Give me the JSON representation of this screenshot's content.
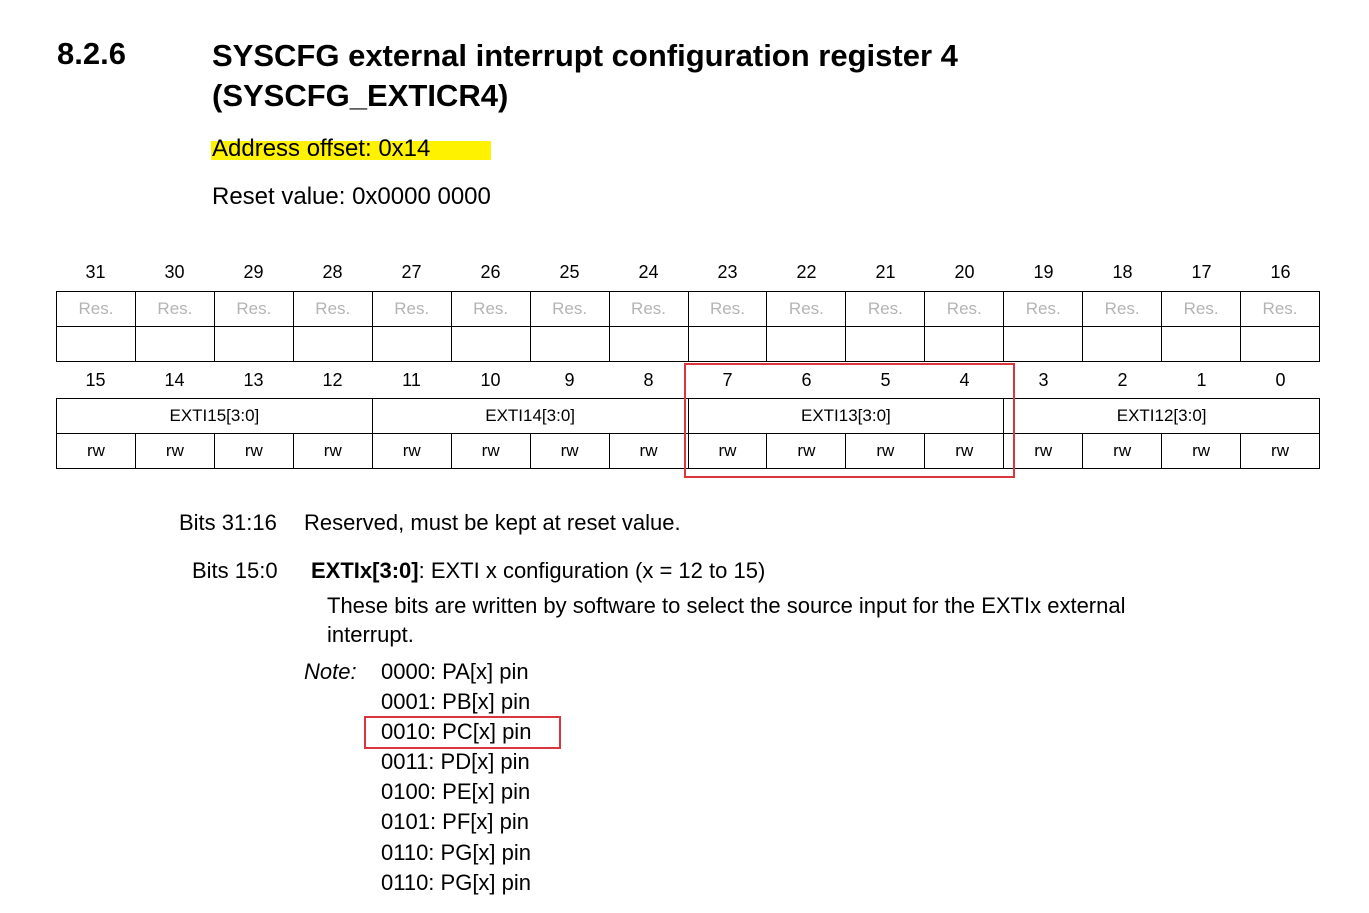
{
  "section": {
    "number": "8.2.6",
    "title_line1": "SYSCFG external interrupt configuration register 4",
    "title_line2": "(SYSCFG_EXTICR4)"
  },
  "address_offset": "Address offset: 0x14",
  "reset_value": "Reset value: 0x0000 0000",
  "register": {
    "upper_bits": [
      "31",
      "30",
      "29",
      "28",
      "27",
      "26",
      "25",
      "24",
      "23",
      "22",
      "21",
      "20",
      "19",
      "18",
      "17",
      "16"
    ],
    "upper_cells": [
      "Res.",
      "Res.",
      "Res.",
      "Res.",
      "Res.",
      "Res.",
      "Res.",
      "Res.",
      "Res.",
      "Res.",
      "Res.",
      "Res.",
      "Res.",
      "Res.",
      "Res.",
      "Res."
    ],
    "lower_bits": [
      "15",
      "14",
      "13",
      "12",
      "11",
      "10",
      "9",
      "8",
      "7",
      "6",
      "5",
      "4",
      "3",
      "2",
      "1",
      "0"
    ],
    "fields": [
      "EXTI15[3:0]",
      "EXTI14[3:0]",
      "EXTI13[3:0]",
      "EXTI12[3:0]"
    ],
    "access": [
      "rw",
      "rw",
      "rw",
      "rw",
      "rw",
      "rw",
      "rw",
      "rw",
      "rw",
      "rw",
      "rw",
      "rw",
      "rw",
      "rw",
      "rw",
      "rw"
    ]
  },
  "description": {
    "bits_31_16_label": "Bits 31:16",
    "bits_31_16_text": "Reserved, must be kept at reset value.",
    "bits_15_0_label": "Bits 15:0",
    "bits_15_0_name": "EXTIx[3:0]",
    "bits_15_0_summary": ": EXTI x configuration (x = 12 to 15)",
    "body_line1": "These bits are written by software to select the source input for the EXTIx external",
    "body_line2": "interrupt.",
    "note_label": "Note:",
    "options": [
      "0000: PA[x] pin",
      "0001: PB[x] pin",
      "0010: PC[x] pin",
      "0011: PD[x] pin",
      "0100: PE[x] pin",
      "0101: PF[x] pin",
      "0110: PG[x] pin",
      "0110: PG[x] pin"
    ]
  }
}
